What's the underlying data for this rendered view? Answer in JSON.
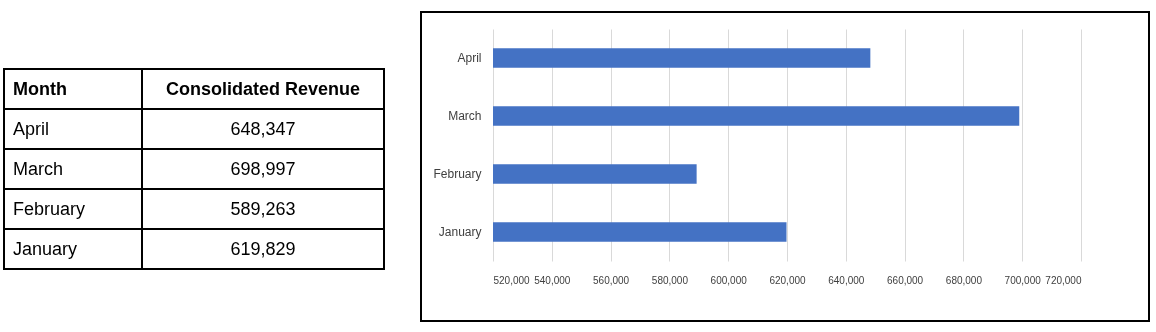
{
  "chart_data": [
    {
      "type": "other",
      "annotations": [
        "Month",
        "Consolidated Revenue",
        "April",
        "648,347",
        "March",
        "698,997",
        "February",
        "589,263",
        "January",
        "619,829"
      ]
    },
    {
      "type": "bar",
      "orientation": "horizontal",
      "categories": [
        "April",
        "March",
        "February",
        "January"
      ],
      "values": [
        648347,
        698997,
        589263,
        619829
      ],
      "color": "#4472c4",
      "xlim": [
        520000,
        720000
      ],
      "xticks": [
        {
          "value": 520000,
          "label": "520,000"
        },
        {
          "value": 540000,
          "label": "540,000"
        },
        {
          "value": 560000,
          "label": "560,000"
        },
        {
          "value": 580000,
          "label": "580,000"
        },
        {
          "value": 600000,
          "label": "600,000"
        },
        {
          "value": 620000,
          "label": "620,000"
        },
        {
          "value": 640000,
          "label": "640,000"
        },
        {
          "value": 660000,
          "label": "660,000"
        },
        {
          "value": 680000,
          "label": "680,000"
        },
        {
          "value": 700000,
          "label": "700,000"
        },
        {
          "value": 720000,
          "label": "720,000"
        }
      ],
      "grid": "x"
    }
  ]
}
